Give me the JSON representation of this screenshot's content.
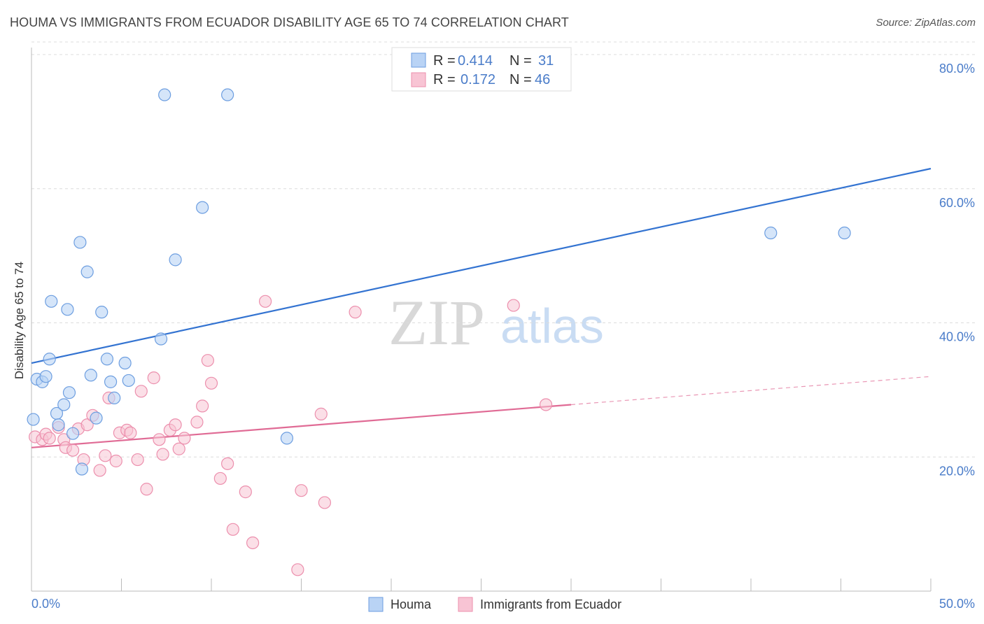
{
  "title": "HOUMA VS IMMIGRANTS FROM ECUADOR DISABILITY AGE 65 TO 74 CORRELATION CHART",
  "source": "Source: ZipAtlas.com",
  "watermark": {
    "zip": "ZIP",
    "atlas": "atlas"
  },
  "colors": {
    "houma_fill": "#b9d3f5",
    "houma_stroke": "#6d9ee0",
    "houma_line": "#3373d1",
    "ecuador_fill": "#f8c4d4",
    "ecuador_stroke": "#ec8fad",
    "ecuador_line": "#e06b95",
    "accent_text": "#4a7cc9"
  },
  "legend": [
    {
      "r_label": "R =",
      "r_value": "0.414",
      "n_label": "N =",
      "n_value": "31"
    },
    {
      "r_label": "R =",
      "r_value": "0.172",
      "n_label": "N =",
      "n_value": "46"
    }
  ],
  "chart_data": {
    "type": "scatter",
    "title": "HOUMA VS IMMIGRANTS FROM ECUADOR DISABILITY AGE 65 TO 74 CORRELATION CHART",
    "xlabel": "",
    "ylabel": "Disability Age 65 to 74",
    "xlim": [
      0,
      50
    ],
    "ylim": [
      0,
      80
    ],
    "x_tick_labels": [
      "0.0%",
      "50.0%"
    ],
    "y_tick_labels": [
      "20.0%",
      "40.0%",
      "60.0%",
      "80.0%"
    ],
    "y_ticks": [
      20,
      40,
      60,
      80
    ],
    "grid": true,
    "legend_position": "top-center",
    "series": [
      {
        "name": "Houma",
        "points": [
          [
            0.1,
            25.6
          ],
          [
            0.3,
            31.6
          ],
          [
            0.6,
            31.2
          ],
          [
            0.8,
            32.0
          ],
          [
            1.0,
            34.6
          ],
          [
            1.1,
            43.2
          ],
          [
            1.4,
            26.5
          ],
          [
            1.5,
            24.8
          ],
          [
            1.8,
            27.8
          ],
          [
            2.0,
            42.0
          ],
          [
            2.1,
            29.6
          ],
          [
            2.3,
            23.5
          ],
          [
            2.7,
            52.0
          ],
          [
            2.8,
            18.2
          ],
          [
            3.1,
            47.6
          ],
          [
            3.3,
            32.2
          ],
          [
            3.6,
            25.8
          ],
          [
            3.9,
            41.6
          ],
          [
            4.2,
            34.6
          ],
          [
            4.4,
            31.2
          ],
          [
            4.6,
            28.8
          ],
          [
            5.2,
            34.0
          ],
          [
            5.4,
            31.4
          ],
          [
            7.2,
            37.6
          ],
          [
            7.4,
            74.0
          ],
          [
            8.0,
            49.4
          ],
          [
            9.5,
            57.2
          ],
          [
            10.9,
            74.0
          ],
          [
            14.2,
            22.8
          ],
          [
            41.1,
            53.4
          ],
          [
            45.2,
            53.4
          ]
        ],
        "trend": {
          "x": [
            0,
            50
          ],
          "y": [
            34.0,
            63.0
          ]
        }
      },
      {
        "name": "Immigrants from Ecuador",
        "points": [
          [
            0.2,
            23.0
          ],
          [
            0.6,
            22.6
          ],
          [
            0.8,
            23.4
          ],
          [
            1.0,
            22.8
          ],
          [
            1.5,
            24.4
          ],
          [
            1.8,
            22.6
          ],
          [
            1.9,
            21.4
          ],
          [
            2.3,
            21.0
          ],
          [
            2.6,
            24.2
          ],
          [
            2.9,
            19.6
          ],
          [
            3.1,
            24.8
          ],
          [
            3.4,
            26.2
          ],
          [
            3.8,
            18.0
          ],
          [
            4.1,
            20.2
          ],
          [
            4.3,
            28.8
          ],
          [
            4.7,
            19.4
          ],
          [
            4.9,
            23.6
          ],
          [
            5.3,
            24.0
          ],
          [
            5.5,
            23.6
          ],
          [
            5.9,
            19.6
          ],
          [
            6.1,
            29.8
          ],
          [
            6.4,
            15.2
          ],
          [
            6.8,
            31.8
          ],
          [
            7.1,
            22.6
          ],
          [
            7.3,
            20.4
          ],
          [
            7.7,
            24.0
          ],
          [
            8.0,
            24.8
          ],
          [
            8.2,
            21.2
          ],
          [
            8.5,
            22.8
          ],
          [
            9.2,
            25.2
          ],
          [
            9.5,
            27.6
          ],
          [
            9.8,
            34.4
          ],
          [
            10.0,
            31.0
          ],
          [
            10.5,
            16.8
          ],
          [
            10.9,
            19.0
          ],
          [
            11.2,
            9.2
          ],
          [
            11.9,
            14.8
          ],
          [
            12.3,
            7.2
          ],
          [
            13.0,
            43.2
          ],
          [
            14.8,
            3.2
          ],
          [
            15.0,
            15.0
          ],
          [
            16.1,
            26.4
          ],
          [
            16.3,
            13.2
          ],
          [
            18.0,
            41.6
          ],
          [
            26.8,
            42.6
          ],
          [
            28.6,
            27.8
          ]
        ],
        "trend": {
          "x": [
            0,
            30
          ],
          "y": [
            21.4,
            27.8
          ]
        },
        "trend_dashed": {
          "x": [
            30,
            50
          ],
          "y": [
            27.8,
            32.0
          ]
        }
      }
    ]
  }
}
